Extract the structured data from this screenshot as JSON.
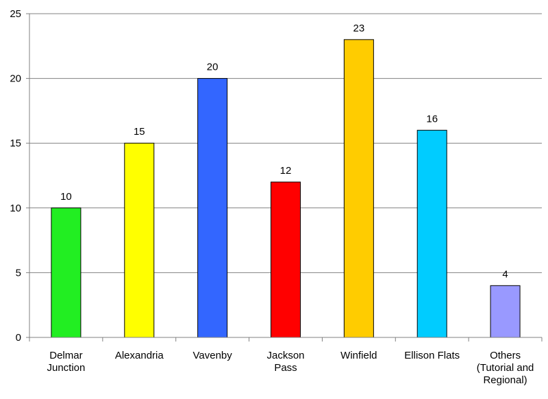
{
  "chart_data": {
    "type": "bar",
    "categories": [
      [
        "Delmar",
        "Junction"
      ],
      [
        "Alexandria"
      ],
      [
        "Vavenby"
      ],
      [
        "Jackson",
        "Pass"
      ],
      [
        "Winfield"
      ],
      [
        "Ellison Flats"
      ],
      [
        "Others",
        "(Tutorial and",
        "Regional)"
      ]
    ],
    "values": [
      10,
      15,
      20,
      12,
      23,
      16,
      4
    ],
    "data_labels": [
      "10",
      "15",
      "20",
      "12",
      "23",
      "16",
      "4"
    ],
    "bar_colors": [
      "#22ee22",
      "#ffff00",
      "#3366ff",
      "#ff0000",
      "#ffcc00",
      "#00ccff",
      "#9999ff"
    ],
    "yticks": [
      0,
      5,
      10,
      15,
      20,
      25
    ],
    "ylim": [
      0,
      25
    ],
    "grid": true,
    "title": "",
    "xlabel": "",
    "ylabel": ""
  }
}
